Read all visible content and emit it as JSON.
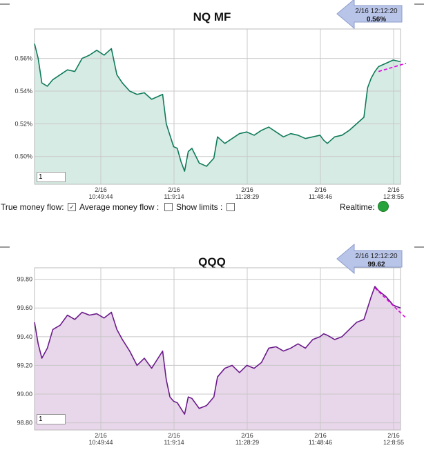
{
  "colors": {
    "nq_line": "#0f7a5a",
    "nq_fill": "#d6ebe3",
    "qqq_line": "#6a1a8a",
    "qqq_fill": "#e8d6ea",
    "trend": "#e000e0",
    "grid": "#c8c8c8",
    "realtime": "#27a33b",
    "callout": "#b8c4e8"
  },
  "controls": {
    "true_money_flow_label": "True money flow:",
    "true_money_flow_checked": "✓",
    "average_money_flow_label": "Average money flow :",
    "show_limits_label": "Show limits :",
    "realtime_label": "Realtime:"
  },
  "chart_data": [
    {
      "type": "area",
      "title": "NQ MF",
      "callout": {
        "time": "2/16 12:12:20",
        "value": "0.56%"
      },
      "input_value": "1",
      "y_ticks": [
        "0.50%",
        "0.52%",
        "0.54%",
        "0.56%"
      ],
      "y_tick_values": [
        0.5,
        0.52,
        0.54,
        0.56
      ],
      "ylim": [
        0.483,
        0.578
      ],
      "x_ticks": [
        {
          "date": "2/16",
          "time": "10:49:44"
        },
        {
          "date": "2/16",
          "time": "11:9:14"
        },
        {
          "date": "2/16",
          "time": "11:28:29"
        },
        {
          "date": "2/16",
          "time": "11:48:46"
        },
        {
          "date": "2/16",
          "time": "12:8:55"
        }
      ],
      "x_tick_positions": [
        0.2,
        0.4,
        0.6,
        0.8,
        1.0
      ],
      "grid": true,
      "x": [
        0,
        0.01,
        0.02,
        0.035,
        0.05,
        0.07,
        0.09,
        0.11,
        0.13,
        0.15,
        0.17,
        0.19,
        0.21,
        0.225,
        0.24,
        0.26,
        0.28,
        0.3,
        0.32,
        0.35,
        0.36,
        0.37,
        0.38,
        0.39,
        0.4,
        0.41,
        0.42,
        0.43,
        0.45,
        0.47,
        0.49,
        0.5,
        0.52,
        0.54,
        0.56,
        0.58,
        0.6,
        0.62,
        0.64,
        0.66,
        0.68,
        0.7,
        0.72,
        0.74,
        0.76,
        0.78,
        0.79,
        0.8,
        0.82,
        0.84,
        0.86,
        0.88,
        0.9,
        0.91,
        0.92,
        0.93,
        0.94,
        0.96,
        0.98,
        1.0
      ],
      "values": [
        0.569,
        0.56,
        0.545,
        0.543,
        0.547,
        0.55,
        0.553,
        0.552,
        0.56,
        0.562,
        0.565,
        0.562,
        0.566,
        0.55,
        0.545,
        0.54,
        0.538,
        0.539,
        0.535,
        0.538,
        0.52,
        0.513,
        0.506,
        0.505,
        0.497,
        0.491,
        0.503,
        0.505,
        0.496,
        0.494,
        0.499,
        0.512,
        0.508,
        0.511,
        0.514,
        0.515,
        0.513,
        0.516,
        0.518,
        0.515,
        0.512,
        0.514,
        0.513,
        0.511,
        0.512,
        0.513,
        0.51,
        0.508,
        0.512,
        0.513,
        0.516,
        0.52,
        0.524,
        0.542,
        0.548,
        0.552,
        0.555,
        0.557,
        0.559,
        0.558
      ],
      "trend": {
        "x": [
          0.94,
          1.0
        ],
        "values": [
          0.552,
          0.557
        ]
      }
    },
    {
      "type": "area",
      "title": "QQQ",
      "callout": {
        "time": "2/16 12:12:20",
        "value": "99.62"
      },
      "input_value": "1",
      "y_ticks": [
        "98.80",
        "99.00",
        "99.20",
        "99.40",
        "99.60",
        "99.80"
      ],
      "y_tick_values": [
        98.8,
        99.0,
        99.2,
        99.4,
        99.6,
        99.8
      ],
      "ylim": [
        98.75,
        99.88
      ],
      "x_ticks": [
        {
          "date": "2/16",
          "time": "10:49:44"
        },
        {
          "date": "2/16",
          "time": "11:9:14"
        },
        {
          "date": "2/16",
          "time": "11:28:29"
        },
        {
          "date": "2/16",
          "time": "11:48:46"
        },
        {
          "date": "2/16",
          "time": "12:8:55"
        }
      ],
      "x_tick_positions": [
        0.2,
        0.4,
        0.6,
        0.8,
        1.0
      ],
      "grid": true,
      "x": [
        0,
        0.01,
        0.02,
        0.035,
        0.05,
        0.07,
        0.09,
        0.11,
        0.13,
        0.15,
        0.17,
        0.19,
        0.21,
        0.225,
        0.24,
        0.26,
        0.28,
        0.3,
        0.32,
        0.35,
        0.36,
        0.37,
        0.38,
        0.39,
        0.4,
        0.41,
        0.42,
        0.43,
        0.45,
        0.47,
        0.49,
        0.5,
        0.52,
        0.54,
        0.56,
        0.58,
        0.6,
        0.62,
        0.64,
        0.66,
        0.68,
        0.7,
        0.72,
        0.74,
        0.76,
        0.78,
        0.79,
        0.8,
        0.82,
        0.84,
        0.86,
        0.88,
        0.9,
        0.91,
        0.92,
        0.93,
        0.94,
        0.96,
        0.98,
        1.0
      ],
      "values": [
        99.5,
        99.35,
        99.25,
        99.32,
        99.45,
        99.48,
        99.55,
        99.52,
        99.57,
        99.55,
        99.56,
        99.53,
        99.57,
        99.45,
        99.38,
        99.3,
        99.2,
        99.25,
        99.18,
        99.3,
        99.1,
        98.98,
        98.95,
        98.94,
        98.9,
        98.86,
        98.98,
        98.97,
        98.9,
        98.92,
        98.98,
        99.12,
        99.18,
        99.2,
        99.15,
        99.2,
        99.18,
        99.22,
        99.32,
        99.33,
        99.3,
        99.32,
        99.35,
        99.32,
        99.38,
        99.4,
        99.42,
        99.41,
        99.38,
        99.4,
        99.45,
        99.5,
        99.52,
        99.6,
        99.68,
        99.75,
        99.72,
        99.68,
        99.62,
        99.6
      ],
      "trend": {
        "x": [
          0.93,
          1.0
        ],
        "values": [
          99.74,
          99.53
        ]
      }
    }
  ]
}
